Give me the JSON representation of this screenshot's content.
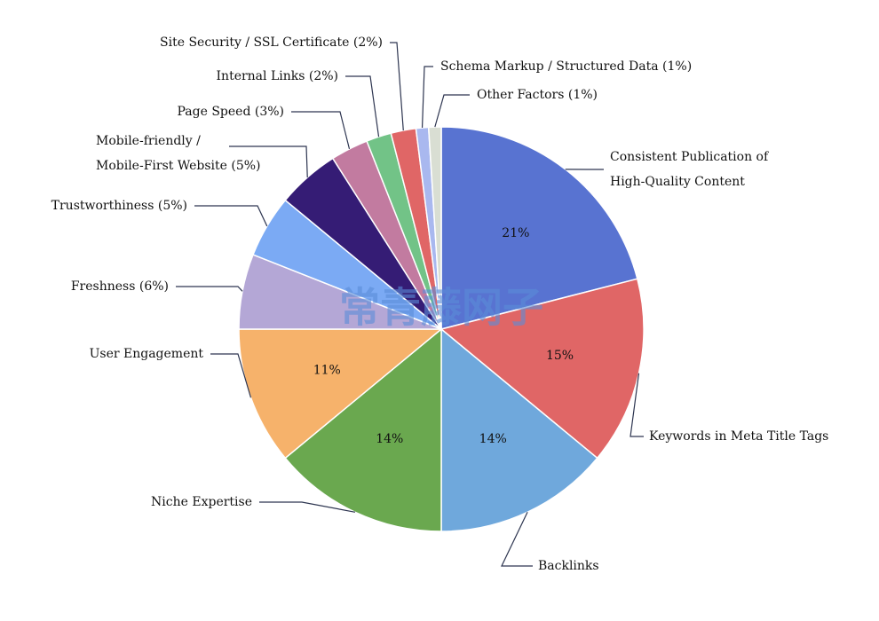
{
  "chart_data": {
    "type": "pie",
    "categories": [
      "Consistent Publication of\nHigh-Quality Content",
      "Keywords in Meta Title Tags",
      "Backlinks",
      "Niche Expertise",
      "User Engagement",
      "Freshness (6%)",
      "Trustworthiness (5%)",
      "Mobile-friendly /\nMobile-First Website (5%)",
      "Page Speed (3%)",
      "Internal Links (2%)",
      "Site Security / SSL Certificate (2%)",
      "Schema Markup / Structured Data (1%)",
      "Other Factors (1%)"
    ],
    "values": [
      21,
      15,
      14,
      14,
      11,
      6,
      5,
      5,
      3,
      2,
      2,
      1,
      1
    ],
    "value_labels": [
      "21%",
      "15%",
      "14%",
      "14%",
      "11%",
      null,
      null,
      null,
      null,
      null,
      null,
      null,
      null
    ],
    "colors": [
      "#5873d1",
      "#e06666",
      "#6fa8dc",
      "#6aa84f",
      "#f6b26b",
      "#b4a7d6",
      "#7baaf4",
      "#351c75",
      "#c27ba0",
      "#72c387",
      "#e06666",
      "#a9b8ef",
      "#d9ded3"
    ]
  },
  "watermark": "常青藤网子"
}
